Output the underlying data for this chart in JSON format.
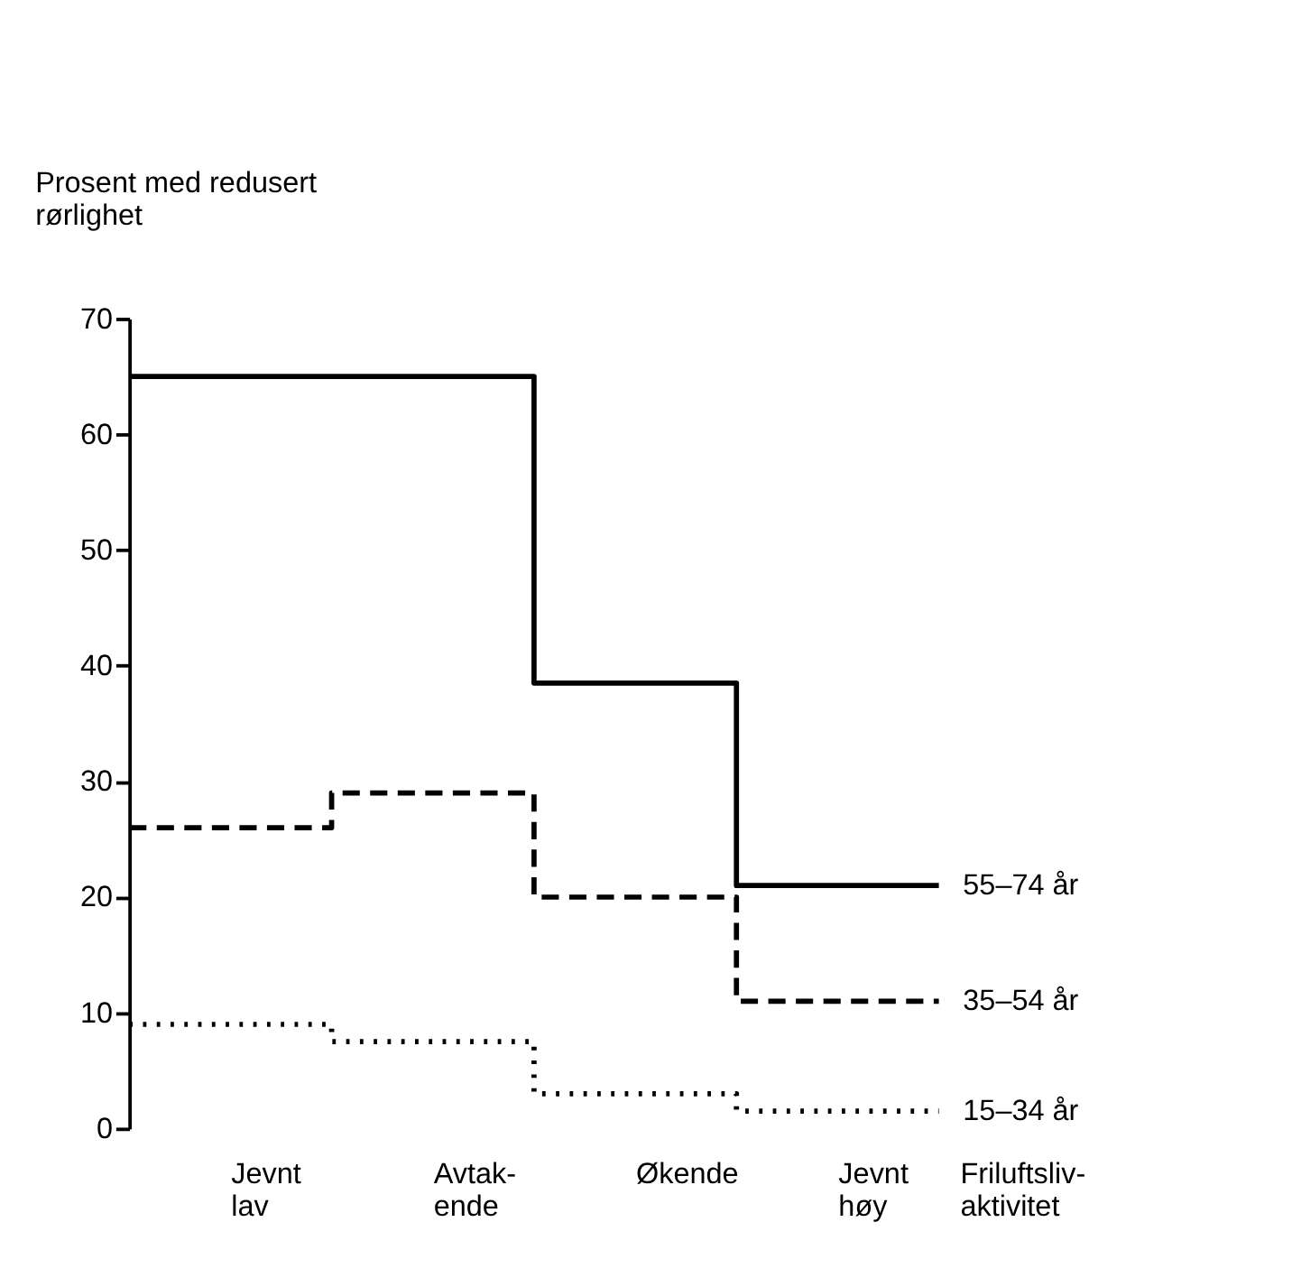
{
  "chart_data": {
    "type": "step",
    "ylabel": "Prosent med redusert\nrørlighet",
    "xlabel": "Friluftsliv-\naktivitet",
    "categories": [
      "Jevnt\nlav",
      "Avtak-\nende",
      "Økende",
      "Jevnt\nhøy"
    ],
    "ylim": [
      0,
      70
    ],
    "yticks": [
      0,
      10,
      20,
      30,
      40,
      50,
      60,
      70
    ],
    "grid": false,
    "series": [
      {
        "name": "55–74 år",
        "color": "#000000",
        "line_style": "solid",
        "values": [
          65,
          65,
          38.5,
          21
        ]
      },
      {
        "name": "35–54 år",
        "color": "#000000",
        "line_style": "dashed",
        "values": [
          26,
          29,
          20,
          11
        ]
      },
      {
        "name": "15–34 år",
        "color": "#000000",
        "line_style": "dotted",
        "values": [
          9,
          7.5,
          3,
          1.5
        ]
      }
    ]
  }
}
